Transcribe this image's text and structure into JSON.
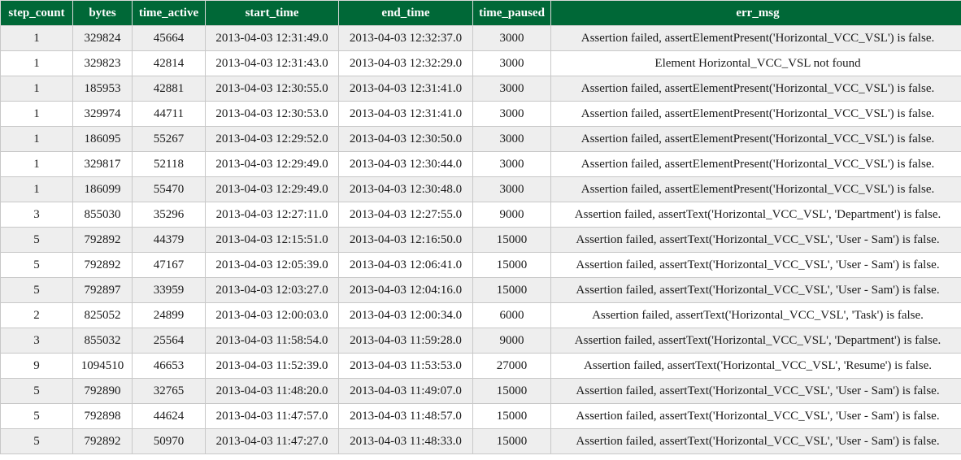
{
  "table": {
    "headers": [
      "step_count",
      "bytes",
      "time_active",
      "start_time",
      "end_time",
      "time_paused",
      "err_msg"
    ],
    "rows": [
      [
        "1",
        "329824",
        "45664",
        "2013-04-03 12:31:49.0",
        "2013-04-03 12:32:37.0",
        "3000",
        "Assertion failed, assertElementPresent('Horizontal_VCC_VSL') is false."
      ],
      [
        "1",
        "329823",
        "42814",
        "2013-04-03 12:31:43.0",
        "2013-04-03 12:32:29.0",
        "3000",
        "Element Horizontal_VCC_VSL not found"
      ],
      [
        "1",
        "185953",
        "42881",
        "2013-04-03 12:30:55.0",
        "2013-04-03 12:31:41.0",
        "3000",
        "Assertion failed, assertElementPresent('Horizontal_VCC_VSL') is false."
      ],
      [
        "1",
        "329974",
        "44711",
        "2013-04-03 12:30:53.0",
        "2013-04-03 12:31:41.0",
        "3000",
        "Assertion failed, assertElementPresent('Horizontal_VCC_VSL') is false."
      ],
      [
        "1",
        "186095",
        "55267",
        "2013-04-03 12:29:52.0",
        "2013-04-03 12:30:50.0",
        "3000",
        "Assertion failed, assertElementPresent('Horizontal_VCC_VSL') is false."
      ],
      [
        "1",
        "329817",
        "52118",
        "2013-04-03 12:29:49.0",
        "2013-04-03 12:30:44.0",
        "3000",
        "Assertion failed, assertElementPresent('Horizontal_VCC_VSL') is false."
      ],
      [
        "1",
        "186099",
        "55470",
        "2013-04-03 12:29:49.0",
        "2013-04-03 12:30:48.0",
        "3000",
        "Assertion failed, assertElementPresent('Horizontal_VCC_VSL') is false."
      ],
      [
        "3",
        "855030",
        "35296",
        "2013-04-03 12:27:11.0",
        "2013-04-03 12:27:55.0",
        "9000",
        "Assertion failed, assertText('Horizontal_VCC_VSL', 'Department') is false."
      ],
      [
        "5",
        "792892",
        "44379",
        "2013-04-03 12:15:51.0",
        "2013-04-03 12:16:50.0",
        "15000",
        "Assertion failed, assertText('Horizontal_VCC_VSL', 'User - Sam') is false."
      ],
      [
        "5",
        "792892",
        "47167",
        "2013-04-03 12:05:39.0",
        "2013-04-03 12:06:41.0",
        "15000",
        "Assertion failed, assertText('Horizontal_VCC_VSL', 'User - Sam') is false."
      ],
      [
        "5",
        "792897",
        "33959",
        "2013-04-03 12:03:27.0",
        "2013-04-03 12:04:16.0",
        "15000",
        "Assertion failed, assertText('Horizontal_VCC_VSL', 'User - Sam') is false."
      ],
      [
        "2",
        "825052",
        "24899",
        "2013-04-03 12:00:03.0",
        "2013-04-03 12:00:34.0",
        "6000",
        "Assertion failed, assertText('Horizontal_VCC_VSL', 'Task') is false."
      ],
      [
        "3",
        "855032",
        "25564",
        "2013-04-03 11:58:54.0",
        "2013-04-03 11:59:28.0",
        "9000",
        "Assertion failed, assertText('Horizontal_VCC_VSL', 'Department') is false."
      ],
      [
        "9",
        "1094510",
        "46653",
        "2013-04-03 11:52:39.0",
        "2013-04-03 11:53:53.0",
        "27000",
        "Assertion failed, assertText('Horizontal_VCC_VSL', 'Resume') is false."
      ],
      [
        "5",
        "792890",
        "32765",
        "2013-04-03 11:48:20.0",
        "2013-04-03 11:49:07.0",
        "15000",
        "Assertion failed, assertText('Horizontal_VCC_VSL', 'User - Sam') is false."
      ],
      [
        "5",
        "792898",
        "44624",
        "2013-04-03 11:47:57.0",
        "2013-04-03 11:48:57.0",
        "15000",
        "Assertion failed, assertText('Horizontal_VCC_VSL', 'User - Sam') is false."
      ],
      [
        "5",
        "792892",
        "50970",
        "2013-04-03 11:47:27.0",
        "2013-04-03 11:48:33.0",
        "15000",
        "Assertion failed, assertText('Horizontal_VCC_VSL', 'User - Sam') is false."
      ]
    ]
  },
  "colors": {
    "header_bg": "#006837",
    "header_text": "#ffffff",
    "row_alt_bg": "#eeeeee",
    "row_bg": "#ffffff",
    "grid": "#c8c8c8"
  }
}
